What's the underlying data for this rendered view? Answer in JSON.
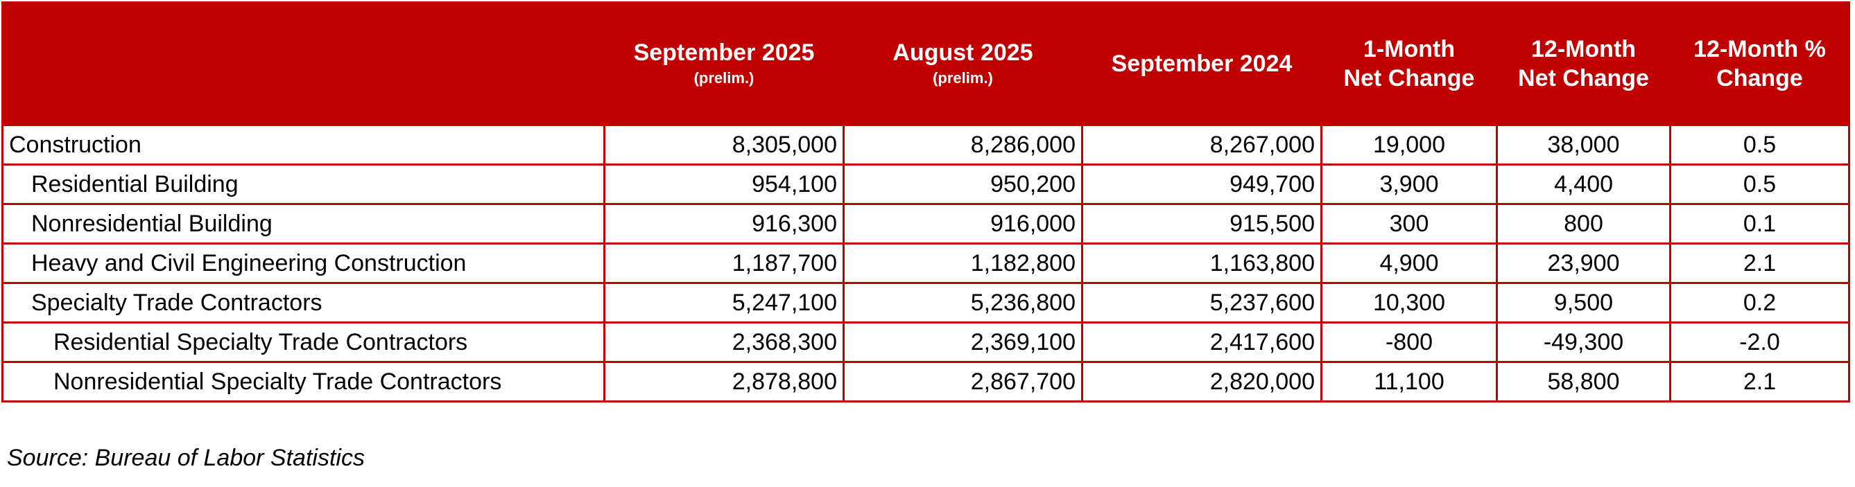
{
  "table": {
    "columns": [
      {
        "lines": [
          "September 2025"
        ],
        "note": "(prelim.)"
      },
      {
        "lines": [
          "August 2025"
        ],
        "note": "(prelim.)"
      },
      {
        "lines": [
          "September 2024"
        ]
      },
      {
        "lines": [
          "1-Month",
          "Net Change"
        ]
      },
      {
        "lines": [
          "12-Month",
          "Net Change"
        ]
      },
      {
        "lines": [
          "12-Month %",
          "Change"
        ]
      }
    ],
    "rows": [
      [
        "Construction",
        "8,305,000",
        "8,286,000",
        "8,267,000",
        "19,000",
        "38,000",
        "0.5"
      ],
      [
        "Residential Building",
        "954,100",
        "950,200",
        "949,700",
        "3,900",
        "4,400",
        "0.5"
      ],
      [
        "Nonresidential Building",
        "916,300",
        "916,000",
        "915,500",
        "300",
        "800",
        "0.1"
      ],
      [
        "Heavy and Civil Engineering Construction",
        "1,187,700",
        "1,182,800",
        "1,163,800",
        "4,900",
        "23,900",
        "2.1"
      ],
      [
        "Specialty Trade Contractors",
        "5,247,100",
        "5,236,800",
        "5,237,600",
        "10,300",
        "9,500",
        "0.2"
      ],
      [
        "Residential Specialty Trade Contractors",
        "2,368,300",
        "2,369,100",
        "2,417,600",
        "-800",
        "-49,300",
        "-2.0"
      ],
      [
        "Nonresidential Specialty Trade Contractors",
        "2,878,800",
        "2,867,700",
        "2,820,000",
        "11,100",
        "58,800",
        "2.1"
      ]
    ]
  },
  "source": "Source: Bureau of Labor Statistics"
}
